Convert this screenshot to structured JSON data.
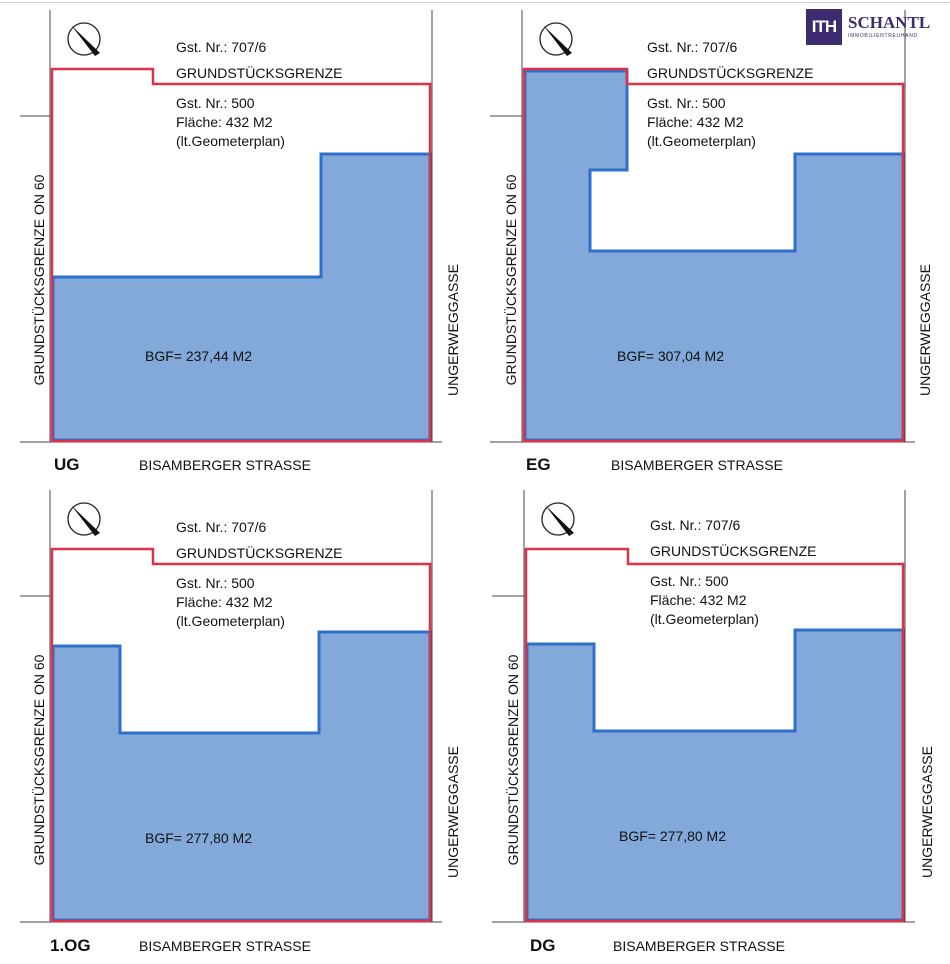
{
  "logo": {
    "mark": "ITH",
    "name": "SCHANTL",
    "tagline": "IMMOBILIENTREUHAND"
  },
  "plans": [
    {
      "floor": "UG",
      "parcel_neighbor": "Gst. Nr.: 707/6",
      "boundary_label": "GRUNDSTÜCKSGRENZE",
      "parcel_number": "Gst. Nr.: 500",
      "area_label": "Fläche: 432 M2",
      "area_source": "(lt.Geometerplan)",
      "bgf": "BGF= 237,44 M2",
      "left_label": "GRUNDSTÜCKSGRENZE ON 60",
      "right_label": "UNGERWEGGASSE",
      "bottom_label": "BISAMBERGER STRASSE"
    },
    {
      "floor": "EG",
      "parcel_neighbor": "Gst. Nr.: 707/6",
      "boundary_label": "GRUNDSTÜCKSGRENZE",
      "parcel_number": "Gst. Nr.: 500",
      "area_label": "Fläche: 432 M2",
      "area_source": "(lt.Geometerplan)",
      "bgf": "BGF= 307,04 M2",
      "left_label": "GRUNDSTÜCKSGRENZE ON 60",
      "right_label": "UNGERWEGGASSE",
      "bottom_label": "BISAMBERGER STRASSE"
    },
    {
      "floor": "1.OG",
      "parcel_neighbor": "Gst. Nr.: 707/6",
      "boundary_label": "GRUNDSTÜCKSGRENZE",
      "parcel_number": "Gst. Nr.: 500",
      "area_label": "Fläche: 432 M2",
      "area_source": "(lt.Geometerplan)",
      "bgf": "BGF= 277,80 M2",
      "left_label": "GRUNDSTÜCKSGRENZE ON 60",
      "right_label": "UNGERWEGGASSE",
      "bottom_label": "BISAMBERGER STRASSE"
    },
    {
      "floor": "DG",
      "parcel_neighbor": "Gst. Nr.: 707/6",
      "boundary_label": "GRUNDSTÜCKSGRENZE",
      "parcel_number": "Gst. Nr.: 500",
      "area_label": "Fläche: 432 M2",
      "area_source": "(lt.Geometerplan)",
      "bgf": "BGF= 277,80 M2",
      "left_label": "GRUNDSTÜCKSGRENZE ON 60",
      "right_label": "UNGERWEGGASSE",
      "bottom_label": "BISAMBERGER STRASSE"
    }
  ],
  "colors": {
    "boundary": "#e0314b",
    "footprint_fill": "#82a9d9",
    "footprint_stroke": "#2f6fcb",
    "lines": "#333333"
  }
}
